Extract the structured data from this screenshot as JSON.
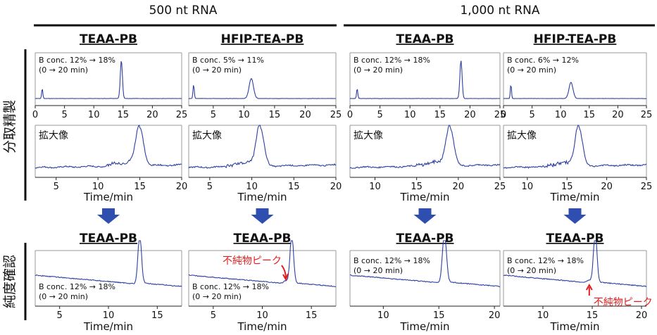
{
  "headers": {
    "group_500": "500 nt RNA",
    "group_1000": "1,000 nt RNA",
    "side_prep": "分取精製",
    "side_purity": "純度確認",
    "zoom_label": "拡大像",
    "xlabel": "Time/min"
  },
  "colors": {
    "trace": "#2d3fa0",
    "arrow": "#2e4fb0",
    "annotation": "#e02020",
    "frame": "#9a9a9a"
  },
  "prep": [
    {
      "title": "TEAA-PB",
      "cond1": "B conc. 12% → 18%",
      "cond2": "(0 → 20 min)",
      "ticks": [
        "0",
        "5",
        "10",
        "15",
        "20",
        "25"
      ],
      "xlim": [
        0,
        25
      ],
      "peaks": [
        {
          "x": 1.2,
          "h": 0.25,
          "w": 0.1
        },
        {
          "x": 14.7,
          "h": 0.95,
          "w": 0.18
        }
      ],
      "zoom_ticks": [
        "5",
        "10",
        "15",
        "20"
      ],
      "zoom_xlim": [
        2.5,
        20
      ],
      "zoom_peak": 15.0
    },
    {
      "title": "HFIP-TEA-PB",
      "cond1": "B conc. 5% → 11%",
      "cond2": "(0 → 20 min)",
      "ticks": [
        "5",
        "10",
        "15",
        "20",
        "25"
      ],
      "xlim": [
        1,
        25
      ],
      "peaks": [
        {
          "x": 1.8,
          "h": 0.35,
          "w": 0.1
        },
        {
          "x": 11.2,
          "h": 0.5,
          "w": 0.35
        }
      ],
      "zoom_ticks": [
        "5",
        "10",
        "15",
        "20"
      ],
      "zoom_xlim": [
        2.5,
        20
      ],
      "zoom_peak": 11.0
    },
    {
      "title": "TEAA-PB",
      "cond1": "B conc. 12% → 18%",
      "cond2": "(0 → 20 min)",
      "ticks": [
        "0",
        "5",
        "10",
        "15",
        "20",
        "25"
      ],
      "xlim": [
        0,
        25
      ],
      "peaks": [
        {
          "x": 1.2,
          "h": 0.25,
          "w": 0.1
        },
        {
          "x": 18.5,
          "h": 0.95,
          "w": 0.18
        }
      ],
      "zoom_ticks": [
        "10",
        "15",
        "20",
        "25"
      ],
      "zoom_xlim": [
        7,
        25
      ],
      "zoom_peak": 19.0
    },
    {
      "title": "HFIP-TEA-PB",
      "cond1": "B conc. 6% → 12%",
      "cond2": "(0 → 20 min)",
      "ticks": [
        "0",
        "5",
        "10",
        "15",
        "20",
        "25"
      ],
      "xlim": [
        0,
        25
      ],
      "peaks": [
        {
          "x": 1.3,
          "h": 0.35,
          "w": 0.1
        },
        {
          "x": 11.8,
          "h": 0.4,
          "w": 0.35
        }
      ],
      "zoom_ticks": [
        "10",
        "15",
        "20",
        "25"
      ],
      "zoom_xlim": [
        7,
        25
      ],
      "zoom_peak": 16.5
    }
  ],
  "purity": [
    {
      "title": "TEAA-PB",
      "cond1": "B conc. 12% → 18%",
      "cond2": "(0 → 20 min)",
      "ticks": [
        "5",
        "10",
        "15"
      ],
      "xlim": [
        2.5,
        17.5
      ],
      "peak": 13.2,
      "impurity": ""
    },
    {
      "title": "TEAA-PB",
      "cond1": "B conc. 12% → 18%",
      "cond2": "(0 → 20 min)",
      "ticks": [
        "5",
        "10",
        "15"
      ],
      "xlim": [
        2.5,
        17.5
      ],
      "peak": 13.0,
      "impurity": "不純物ピーク"
    },
    {
      "title": "TEAA-PB",
      "cond1": "B conc. 12% → 18%",
      "cond2": "(0 → 20 min)",
      "ticks": [
        "10",
        "15",
        "20"
      ],
      "xlim": [
        7,
        20.5
      ],
      "peak": 15.5,
      "impurity": ""
    },
    {
      "title": "TEAA-PB",
      "cond1": "B conc. 12% → 18%",
      "cond2": "(0 → 20 min)",
      "ticks": [
        "10",
        "15",
        "20"
      ],
      "xlim": [
        6,
        20.5
      ],
      "peak": 15.3,
      "impurity": "不純物ピーク"
    }
  ],
  "chart_data": {
    "type": "line",
    "title": "",
    "xlabel": "Time/min",
    "series": [
      {
        "panel": "500 nt TEAA-PB prep",
        "peak_times_min": [
          1.2,
          14.7
        ]
      },
      {
        "panel": "500 nt HFIP-TEA-PB prep",
        "peak_times_min": [
          1.8,
          11.2
        ]
      },
      {
        "panel": "1,000 nt TEAA-PB prep",
        "peak_times_min": [
          1.2,
          18.5
        ]
      },
      {
        "panel": "1,000 nt HFIP-TEA-PB prep",
        "peak_times_min": [
          1.3,
          11.8
        ]
      },
      {
        "panel": "500 nt TEAA-PB purity (from TEAA prep)",
        "peak_times_min": [
          13.2
        ]
      },
      {
        "panel": "500 nt TEAA-PB purity (from HFIP prep)",
        "peak_times_min": [
          13.0
        ]
      },
      {
        "panel": "1,000 nt TEAA-PB purity (from TEAA prep)",
        "peak_times_min": [
          15.5
        ]
      },
      {
        "panel": "1,000 nt TEAA-PB purity (from HFIP prep)",
        "peak_times_min": [
          15.3
        ]
      }
    ]
  }
}
